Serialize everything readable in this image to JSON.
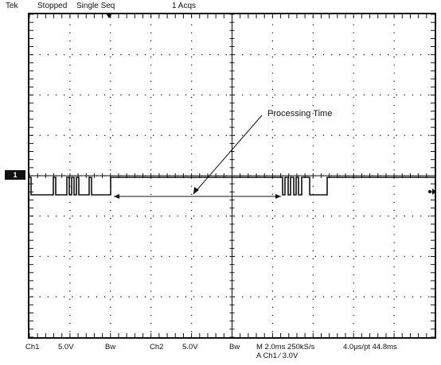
{
  "status_bar": {
    "brand": "Tek",
    "run_state": "Stopped",
    "mode": "Single Seq",
    "acquisitions": "1 Acqs"
  },
  "screen": {
    "annotation": "Processing Time",
    "ch1_marker": "1"
  },
  "readout": {
    "ch1_label": "Ch1",
    "ch1_scale": "5.0V",
    "ch1_bw": "Bw",
    "ch2_label": "Ch2",
    "ch2_scale": "5.0V",
    "ch2_bw": "Bw",
    "timebase": "M 2.0ms 250kS/s",
    "resolution": "4.0µs/pt 44.8ms",
    "trigger": "A Ch1 ⁄ 3.0V"
  },
  "colors": {
    "ink": "#111111",
    "background": "#ffffff"
  }
}
